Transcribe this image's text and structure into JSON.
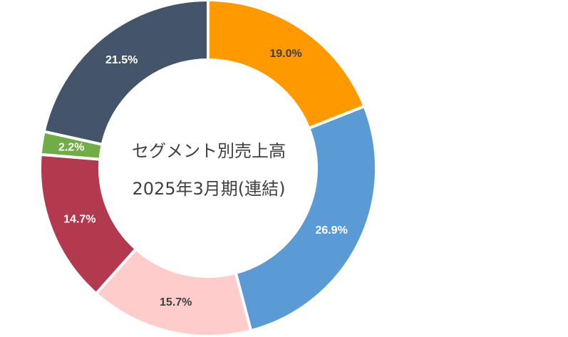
{
  "chart_data": {
    "type": "pie",
    "variant": "donut",
    "title_lines": [
      "セグメント別売上高",
      "2025年3月期(連結)"
    ],
    "legend": "none",
    "slices": [
      {
        "label": "19.0%",
        "value": 19.0,
        "color": "#FF9900",
        "label_color": "#404040"
      },
      {
        "label": "26.9%",
        "value": 26.9,
        "color": "#5B9BD5",
        "label_color": "#FFFFFF"
      },
      {
        "label": "15.7%",
        "value": 15.7,
        "color": "#FFCCCC",
        "label_color": "#404040"
      },
      {
        "label": "14.7%",
        "value": 14.7,
        "color": "#B3394E",
        "label_color": "#FFFFFF"
      },
      {
        "label": "2.2%",
        "value": 2.2,
        "color": "#70AD47",
        "label_color": "#FFFFFF"
      },
      {
        "label": "21.5%",
        "value": 21.5,
        "color": "#44546A",
        "label_color": "#FFFFFF"
      }
    ]
  }
}
